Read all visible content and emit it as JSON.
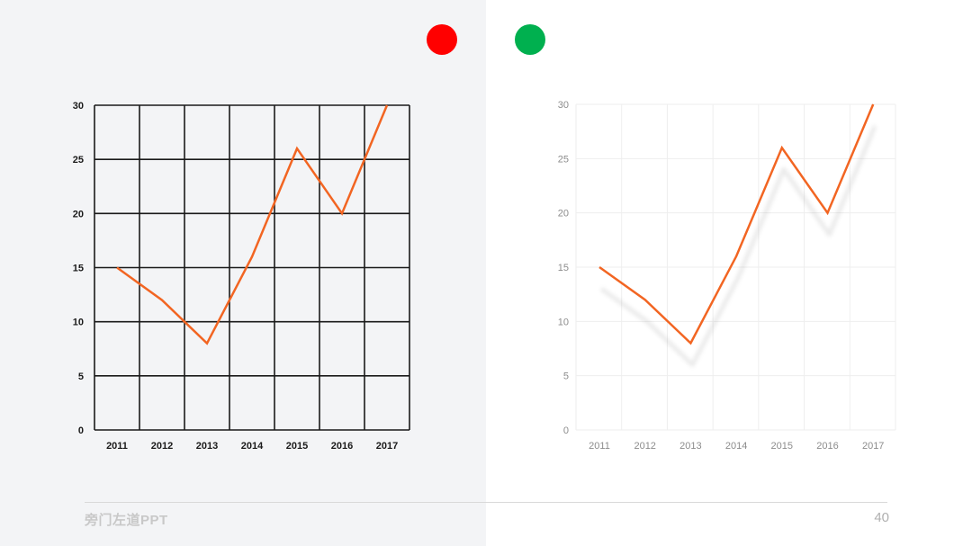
{
  "chart_data": [
    {
      "type": "line",
      "style": "heavy-grid",
      "categories": [
        "2011",
        "2012",
        "2013",
        "2014",
        "2015",
        "2016",
        "2017"
      ],
      "series": [
        {
          "values": [
            15,
            12,
            8,
            16,
            26,
            20,
            30
          ]
        }
      ],
      "ylim": [
        0,
        30
      ],
      "yticks": [
        0,
        5,
        10,
        15,
        20,
        25,
        30
      ],
      "grid": true
    },
    {
      "type": "line",
      "style": "light-grid-shadow",
      "categories": [
        "2011",
        "2012",
        "2013",
        "2014",
        "2015",
        "2016",
        "2017"
      ],
      "series": [
        {
          "values": [
            15,
            12,
            8,
            16,
            26,
            20,
            30
          ]
        }
      ],
      "ylim": [
        0,
        30
      ],
      "yticks": [
        0,
        5,
        10,
        15,
        20,
        25,
        30
      ],
      "grid": true
    }
  ],
  "colors": {
    "line": "#f26522",
    "marker_bad": "#ff0000",
    "marker_good": "#00b04f"
  },
  "footer": {
    "brand": "旁门左道PPT",
    "page": "40"
  }
}
